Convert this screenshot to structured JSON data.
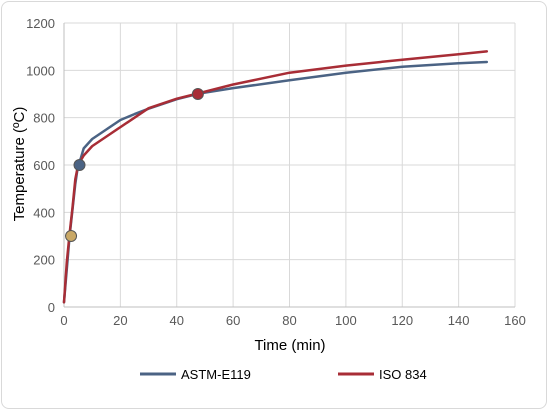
{
  "chart_data": {
    "type": "line",
    "title": "",
    "xlabel": "Time (min)",
    "ylabel": "Temperature (ºC)",
    "xlim": [
      0,
      160
    ],
    "ylim": [
      0,
      1200
    ],
    "xticks": [
      "0",
      "20",
      "40",
      "60",
      "80",
      "100",
      "120",
      "140",
      "160"
    ],
    "yticks": [
      "0",
      "200",
      "400",
      "600",
      "800",
      "1000",
      "1200"
    ],
    "grid": true,
    "legend_position": "bottom",
    "series": [
      {
        "name": "ASTM-E119",
        "color": "#4b6384",
        "x": [
          0,
          2,
          4,
          5,
          6,
          7,
          10,
          15,
          20,
          25,
          30,
          40,
          48,
          60,
          80,
          100,
          120,
          140,
          150
        ],
        "y": [
          20,
          300,
          520,
          600,
          630,
          670,
          710,
          750,
          790,
          815,
          838,
          878,
          902,
          925,
          958,
          990,
          1015,
          1030,
          1035
        ]
      },
      {
        "name": "ISO 834",
        "color": "#a82d36",
        "x": [
          0,
          1,
          2,
          3,
          4,
          5,
          7,
          10,
          15,
          20,
          25,
          30,
          40,
          48,
          60,
          80,
          100,
          120,
          140,
          150
        ],
        "y": [
          20,
          190,
          310,
          420,
          540,
          600,
          640,
          680,
          720,
          760,
          800,
          840,
          880,
          904,
          940,
          990,
          1020,
          1045,
          1068,
          1080
        ]
      }
    ],
    "markers": [
      {
        "x": 2.5,
        "y": 300,
        "color": "#c9a866"
      },
      {
        "x": 5.5,
        "y": 600,
        "color": "#4b6384"
      },
      {
        "x": 47.5,
        "y": 900,
        "color": "#a82d36"
      }
    ]
  }
}
